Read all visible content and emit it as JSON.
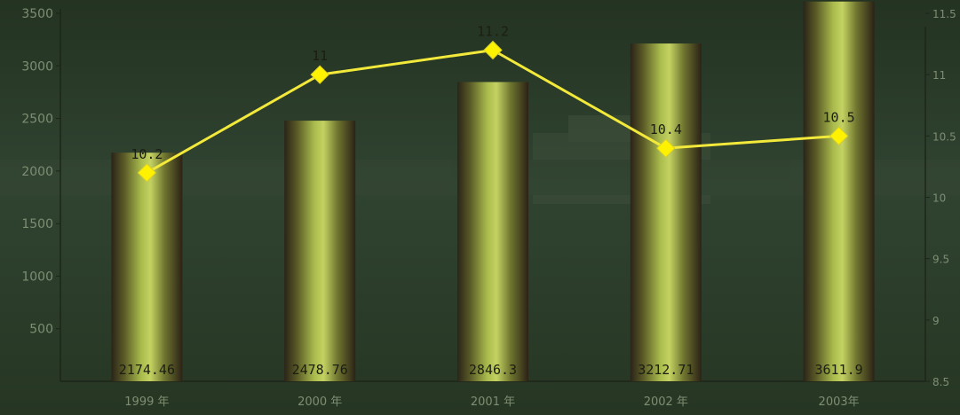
{
  "chart_data": {
    "type": "bar",
    "categories": [
      "1999 年",
      "2000 年",
      "2001 年",
      "2002 年",
      "2003年"
    ],
    "series": [
      {
        "type": "bar",
        "axis": "left",
        "values": [
          2174.46,
          2478.76,
          2846.3,
          3212.71,
          3611.9
        ],
        "labels": [
          "2174.46",
          "2478.76",
          "2846.3",
          "3212.71",
          "3611.9"
        ]
      },
      {
        "type": "line",
        "axis": "right",
        "values": [
          10.2,
          11,
          11.2,
          10.4,
          10.5
        ],
        "labels": [
          "10.2",
          "11",
          "11.2",
          "10.4",
          "10.5"
        ]
      }
    ],
    "y_left": {
      "min": 0,
      "max": 3500,
      "ticks": [
        "500",
        "1000",
        "1500",
        "2000",
        "2500",
        "3000",
        "3500"
      ]
    },
    "y_right": {
      "min": 8.5,
      "max": 11.5,
      "ticks": [
        "8.5",
        "9",
        "9.5",
        "10",
        "10.5",
        "11",
        "11.5"
      ]
    },
    "xlabel": "",
    "ylabel": "",
    "grid": false,
    "legend": "none"
  },
  "colors": {
    "background": "#2a3a26",
    "bar": "#9cad46",
    "line": "#f2e93a",
    "marker": "#fff200",
    "axis_text": "#7e8e72",
    "label_text": "#1b1e12"
  }
}
